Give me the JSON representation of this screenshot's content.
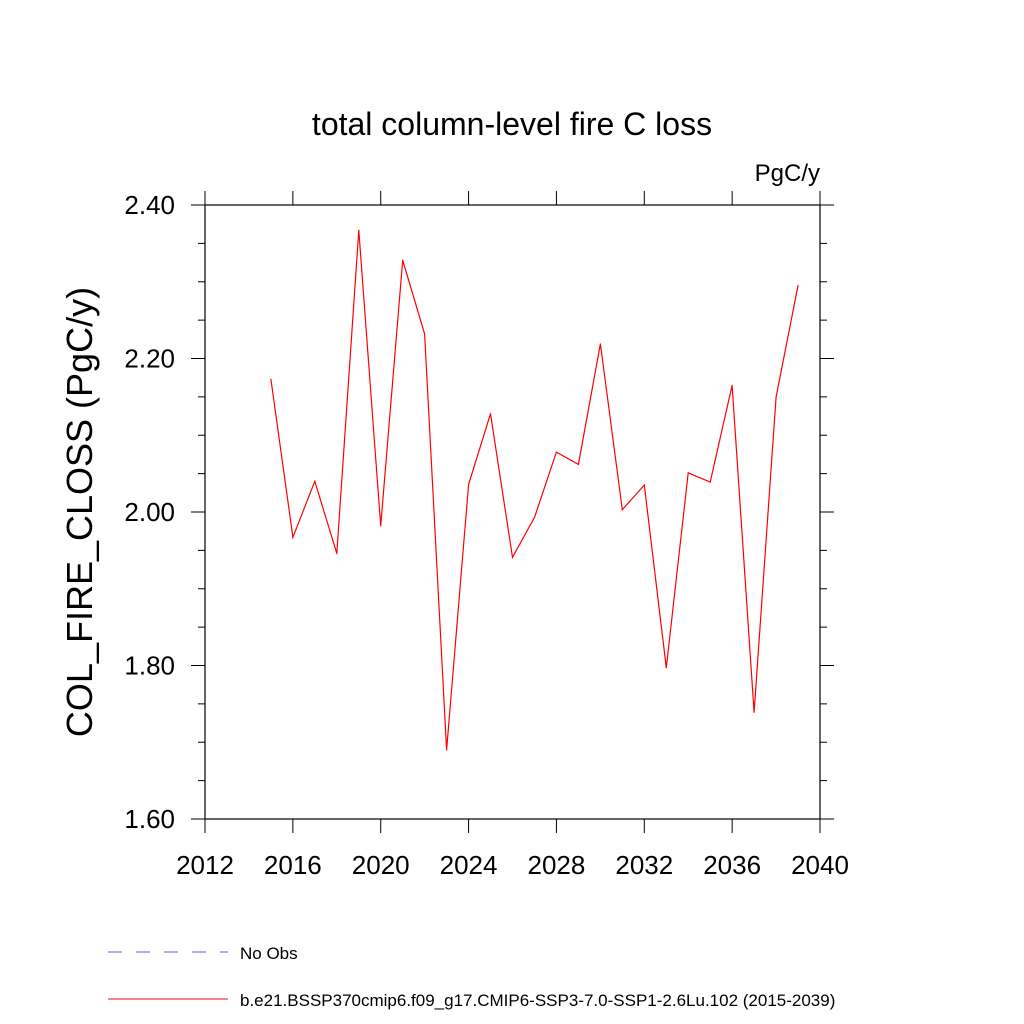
{
  "chart_data": {
    "type": "line",
    "title": "total column-level fire C loss",
    "units": "PgC/y",
    "ylabel": "COL_FIRE_CLOSS  (PgC/y)",
    "xlabel": "",
    "xlim": [
      2012,
      2040
    ],
    "ylim": [
      1.6,
      2.4
    ],
    "x_ticks": [
      2012,
      2016,
      2020,
      2024,
      2028,
      2032,
      2036,
      2040
    ],
    "x_tick_labels": [
      "2012",
      "2016",
      "2020",
      "2024",
      "2028",
      "2032",
      "2036",
      "2040"
    ],
    "y_ticks": [
      1.6,
      1.8,
      2.0,
      2.2,
      2.4
    ],
    "y_tick_labels": [
      "1.60",
      "1.80",
      "2.00",
      "2.20",
      "2.40"
    ],
    "grid": false,
    "legend_position": "bottom",
    "series": [
      {
        "name": "b.e21.BSSP370cmip6.f09_g17.CMIP6-SSP3-7.0-SSP1-2.6Lu.102 (2015-2039)",
        "color": "#ff0000",
        "x": [
          2015,
          2016,
          2017,
          2018,
          2019,
          2020,
          2021,
          2022,
          2023,
          2024,
          2025,
          2026,
          2027,
          2028,
          2029,
          2030,
          2031,
          2032,
          2033,
          2034,
          2035,
          2036,
          2037,
          2038,
          2039
        ],
        "y": [
          2.173,
          1.967,
          2.04,
          1.946,
          2.367,
          1.982,
          2.328,
          2.232,
          1.69,
          2.036,
          2.128,
          1.941,
          1.993,
          2.078,
          2.062,
          2.219,
          2.003,
          2.035,
          1.797,
          2.051,
          2.039,
          2.165,
          1.739,
          2.15,
          2.295
        ]
      }
    ],
    "legend": [
      {
        "label": "No Obs",
        "color": "#6a5acd",
        "style": "dashed"
      },
      {
        "label": "b.e21.BSSP370cmip6.f09_g17.CMIP6-SSP3-7.0-SSP1-2.6Lu.102 (2015-2039)",
        "color": "#ff0000",
        "style": "solid"
      }
    ]
  }
}
